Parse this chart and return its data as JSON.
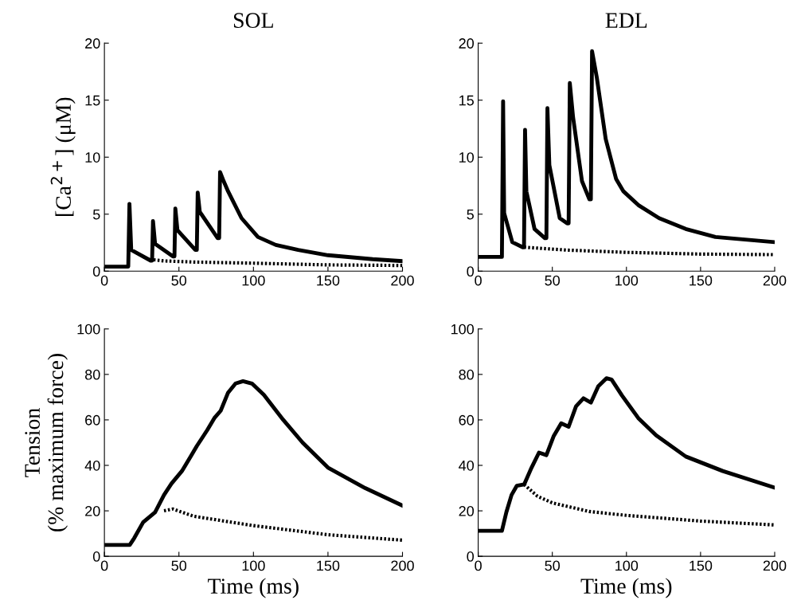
{
  "chart_data": [
    {
      "type": "line",
      "title": "SOL",
      "ylabel": "[Ca$^{2+}$] (μM)",
      "xlim": [
        0,
        200
      ],
      "ylim": [
        0,
        20
      ],
      "xticks": [
        0,
        50,
        100,
        150,
        200
      ],
      "yticks": [
        0,
        5,
        10,
        15,
        20
      ],
      "series": [
        {
          "color": "#000000",
          "line_style": "solid",
          "x": [
            0,
            16,
            16.8,
            18,
            31,
            32,
            32.6,
            34,
            46,
            47,
            47.6,
            49,
            61,
            62,
            62.6,
            64,
            76,
            77,
            77.6,
            80,
            83,
            92,
            103,
            115,
            130,
            150,
            180,
            200
          ],
          "values": [
            0.4,
            0.4,
            5.9,
            1.86,
            0.93,
            0.93,
            4.4,
            2.4,
            1.3,
            1.3,
            5.5,
            3.6,
            1.86,
            1.86,
            6.9,
            5.2,
            2.9,
            2.9,
            8.7,
            7.9,
            7.0,
            4.65,
            3.0,
            2.3,
            1.86,
            1.4,
            1.05,
            0.88
          ]
        },
        {
          "color": "#000000",
          "line_style": "dotted",
          "x": [
            33,
            40,
            60,
            100,
            150,
            200
          ],
          "values": [
            1.0,
            0.9,
            0.8,
            0.7,
            0.55,
            0.5
          ]
        }
      ]
    },
    {
      "type": "line",
      "title": "EDL",
      "xlim": [
        0,
        200
      ],
      "ylim": [
        0,
        20
      ],
      "xticks": [
        0,
        50,
        100,
        150,
        200
      ],
      "yticks": [
        0,
        5,
        10,
        15,
        20
      ],
      "series": [
        {
          "color": "#000000",
          "line_style": "solid",
          "x": [
            0,
            16,
            16.8,
            17.5,
            23,
            30,
            30.9,
            31.6,
            32.5,
            38,
            45,
            46,
            46.7,
            48,
            55,
            60,
            61,
            61.8,
            64,
            70,
            75,
            76,
            76.8,
            80,
            86,
            93,
            98,
            108,
            122,
            140,
            160,
            200
          ],
          "values": [
            1.25,
            1.25,
            14.9,
            5.1,
            2.55,
            2.1,
            2.1,
            12.4,
            7.0,
            3.7,
            2.9,
            2.9,
            14.3,
            9.3,
            4.65,
            4.2,
            4.2,
            16.5,
            13.5,
            7.9,
            6.3,
            6.3,
            19.3,
            17.0,
            11.6,
            8.1,
            7.0,
            5.8,
            4.65,
            3.7,
            3.0,
            2.55
          ]
        },
        {
          "color": "#000000",
          "line_style": "dotted",
          "x": [
            31,
            60,
            100,
            150,
            200
          ],
          "values": [
            2.1,
            1.85,
            1.65,
            1.5,
            1.45
          ]
        }
      ]
    },
    {
      "type": "line",
      "ylabel": "Tension\n(% maximum force)",
      "xlabel": "Time (ms)",
      "xlim": [
        0,
        200
      ],
      "ylim": [
        0,
        100
      ],
      "xticks": [
        0,
        50,
        100,
        150,
        200
      ],
      "yticks": [
        0,
        20,
        40,
        60,
        80,
        100
      ],
      "series": [
        {
          "color": "#000000",
          "line_style": "solid",
          "x": [
            0,
            17,
            20,
            26,
            34,
            40,
            45,
            52,
            58,
            62,
            69,
            74,
            78,
            83,
            88,
            93,
            99,
            107,
            120,
            133,
            150,
            175,
            200
          ],
          "values": [
            5,
            5,
            8,
            15,
            19.4,
            27,
            32,
            37.5,
            44,
            48.5,
            55.5,
            61,
            64,
            72,
            76,
            77,
            76,
            71,
            60,
            50,
            39,
            30,
            22.3
          ]
        },
        {
          "color": "#000000",
          "line_style": "dotted",
          "x": [
            40,
            46,
            60,
            100,
            150,
            200
          ],
          "values": [
            20,
            20.8,
            17.6,
            13.5,
            9.5,
            7.1
          ]
        }
      ]
    },
    {
      "type": "line",
      "xlabel": "Time (ms)",
      "xlim": [
        0,
        200
      ],
      "ylim": [
        0,
        100
      ],
      "xticks": [
        0,
        50,
        100,
        150,
        200
      ],
      "yticks": [
        0,
        20,
        40,
        60,
        80,
        100
      ],
      "series": [
        {
          "color": "#000000",
          "line_style": "solid",
          "x": [
            0,
            16,
            19,
            22.5,
            26,
            31,
            36,
            41,
            46,
            51,
            56,
            61,
            66,
            71,
            76,
            81,
            86.5,
            90,
            97,
            108,
            120,
            140,
            165,
            200
          ],
          "values": [
            11.2,
            11.2,
            19.4,
            27,
            31,
            31.6,
            39,
            45.6,
            44.5,
            53,
            58.5,
            57,
            66,
            69.5,
            67.6,
            74.8,
            78.3,
            77.7,
            70.7,
            60.8,
            53.2,
            43.9,
            37.5,
            30.2
          ]
        },
        {
          "color": "#000000",
          "line_style": "dotted",
          "x": [
            31,
            40,
            50,
            75,
            100,
            150,
            200
          ],
          "values": [
            31.6,
            26.4,
            23.5,
            19.7,
            18,
            15.5,
            13.8
          ]
        }
      ]
    }
  ]
}
